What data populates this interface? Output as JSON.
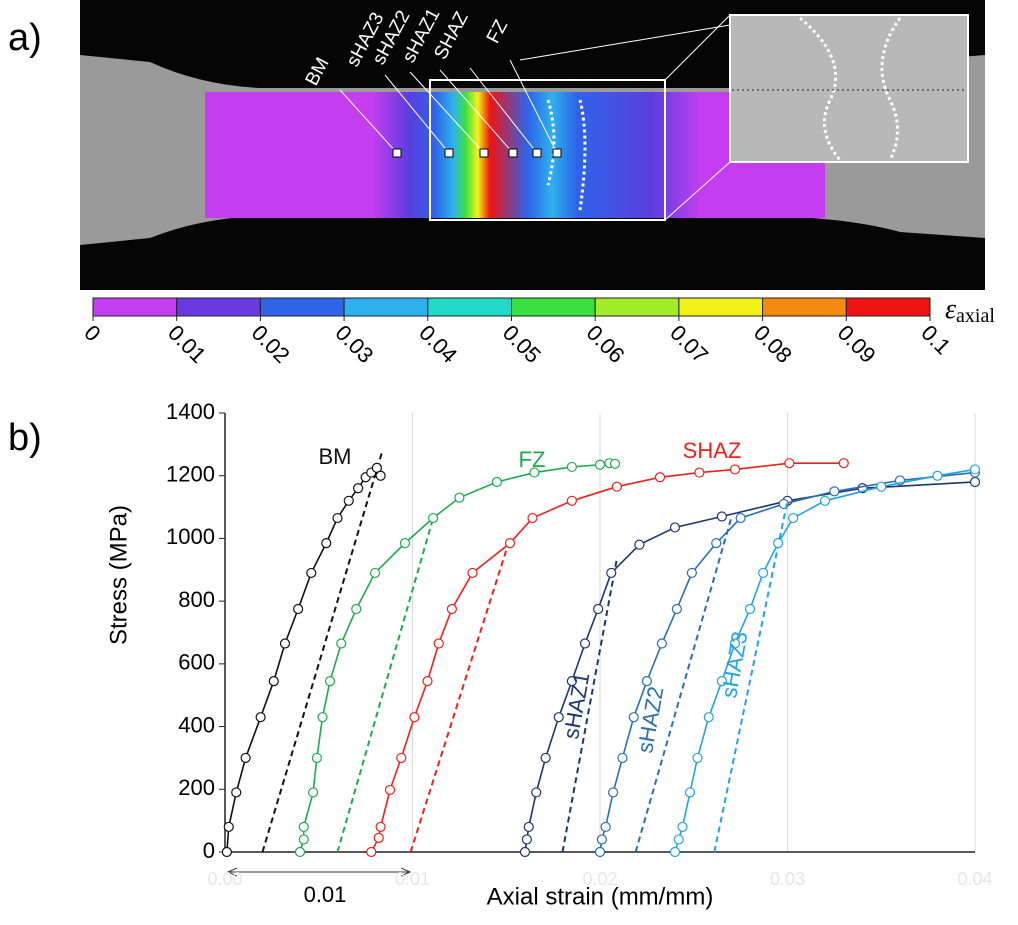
{
  "panel_a": {
    "label": "a)",
    "zone_labels": [
      "BM",
      "sHAZ3",
      "sHAZ2",
      "sHAZ1",
      "SHAZ",
      "FZ"
    ],
    "colorbar": {
      "ticks": [
        0,
        0.01,
        0.02,
        0.03,
        0.04,
        0.05,
        0.06,
        0.07,
        0.08,
        0.09,
        0.1
      ],
      "colors": [
        "#c43ef0",
        "#6a3ae0",
        "#2f63e8",
        "#2fb0ee",
        "#22d9c8",
        "#3ae040",
        "#a2ec2a",
        "#f2f21a",
        "#f48a10",
        "#ee1414"
      ],
      "label": "ε",
      "label_sub": "axial"
    }
  },
  "chart_data": {
    "type": "line",
    "panel_label": "b)",
    "x_label": "Axial strain (mm/mm)",
    "y_label": "Stress (MPa)",
    "xlim": [
      0,
      0.04
    ],
    "ylim": [
      0,
      1400
    ],
    "xticks": [
      {
        "value": 0,
        "label": "0.00"
      },
      0.01,
      {
        "value": 0.02,
        "label": "0.02"
      },
      0.03,
      {
        "value": 0.04,
        "label": "0.04"
      }
    ],
    "yticks": [
      0,
      200,
      400,
      600,
      800,
      1000,
      1200,
      1400
    ],
    "grid": "x",
    "annotations": [
      "0.01"
    ],
    "series": [
      {
        "name": "BM",
        "color": "#111111",
        "x": [
          0.0001,
          0.0002,
          0.0006,
          0.0011,
          0.0019,
          0.0026,
          0.0032,
          0.0039,
          0.0046,
          0.0054,
          0.006,
          0.0066,
          0.0071,
          0.0075,
          0.0078,
          0.0081,
          0.0083
        ],
        "y": [
          0,
          80,
          190,
          300,
          430,
          545,
          665,
          775,
          890,
          985,
          1065,
          1120,
          1160,
          1195,
          1210,
          1225,
          1200
        ],
        "offset_line": {
          "x": [
            0.002,
            0.0084
          ],
          "y": [
            0,
            1280
          ]
        }
      },
      {
        "name": "FZ",
        "color": "#1faa50",
        "x": [
          0.004,
          0.0042,
          0.0042,
          0.0047,
          0.0049,
          0.0052,
          0.0056,
          0.0062,
          0.007,
          0.008,
          0.0096,
          0.0111,
          0.0125,
          0.0145,
          0.0165,
          0.0185,
          0.02,
          0.0205,
          0.0208
        ],
        "y": [
          0,
          40,
          80,
          190,
          300,
          430,
          545,
          665,
          775,
          890,
          985,
          1065,
          1130,
          1180,
          1210,
          1228,
          1235,
          1240,
          1238
        ],
        "offset_line": {
          "x": [
            0.006,
            0.0111
          ],
          "y": [
            0,
            1065
          ]
        }
      },
      {
        "name": "SHAZ",
        "color": "#e8231e",
        "x": [
          0.0078,
          0.0082,
          0.0083,
          0.0088,
          0.0094,
          0.0101,
          0.0108,
          0.0114,
          0.0121,
          0.0132,
          0.0152,
          0.0164,
          0.0185,
          0.0209,
          0.0232,
          0.0253,
          0.0272,
          0.0301,
          0.033
        ],
        "y": [
          0,
          45,
          80,
          198,
          300,
          430,
          545,
          665,
          775,
          890,
          985,
          1065,
          1120,
          1165,
          1195,
          1210,
          1220,
          1240,
          1240
        ],
        "offset_line": {
          "x": [
            0.0099,
            0.0152
          ],
          "y": [
            0,
            1000
          ]
        }
      },
      {
        "name": "sHAZ1",
        "color": "#1c3670",
        "x": [
          0.016,
          0.0161,
          0.0162,
          0.0166,
          0.0171,
          0.0178,
          0.0185,
          0.0192,
          0.0199,
          0.0206,
          0.0221,
          0.024,
          0.0265,
          0.03,
          0.034,
          0.04
        ],
        "y": [
          0,
          40,
          80,
          190,
          300,
          430,
          545,
          665,
          775,
          890,
          980,
          1035,
          1070,
          1120,
          1160,
          1180
        ],
        "offset_line": {
          "x": [
            0.018,
            0.0209
          ],
          "y": [
            0,
            935
          ]
        }
      },
      {
        "name": "sHAZ2",
        "color": "#2a6eb3",
        "x": [
          0.02,
          0.0201,
          0.0203,
          0.0207,
          0.0212,
          0.0218,
          0.0225,
          0.0233,
          0.0241,
          0.0249,
          0.0262,
          0.0275,
          0.0298,
          0.0325,
          0.036,
          0.04
        ],
        "y": [
          0,
          40,
          80,
          190,
          300,
          430,
          545,
          665,
          775,
          890,
          985,
          1065,
          1110,
          1150,
          1185,
          1210
        ],
        "offset_line": {
          "x": [
            0.0219,
            0.027
          ],
          "y": [
            0,
            1065
          ]
        }
      },
      {
        "name": "sHAZ3",
        "color": "#22a4de",
        "x": [
          0.024,
          0.0242,
          0.0244,
          0.0248,
          0.0252,
          0.0258,
          0.0265,
          0.0272,
          0.028,
          0.0287,
          0.0295,
          0.0303,
          0.032,
          0.035,
          0.038,
          0.04
        ],
        "y": [
          0,
          40,
          80,
          190,
          300,
          430,
          545,
          665,
          775,
          890,
          985,
          1065,
          1120,
          1165,
          1200,
          1220
        ],
        "offset_line": {
          "x": [
            0.0261,
            0.03
          ],
          "y": [
            0,
            1120
          ]
        }
      }
    ]
  }
}
